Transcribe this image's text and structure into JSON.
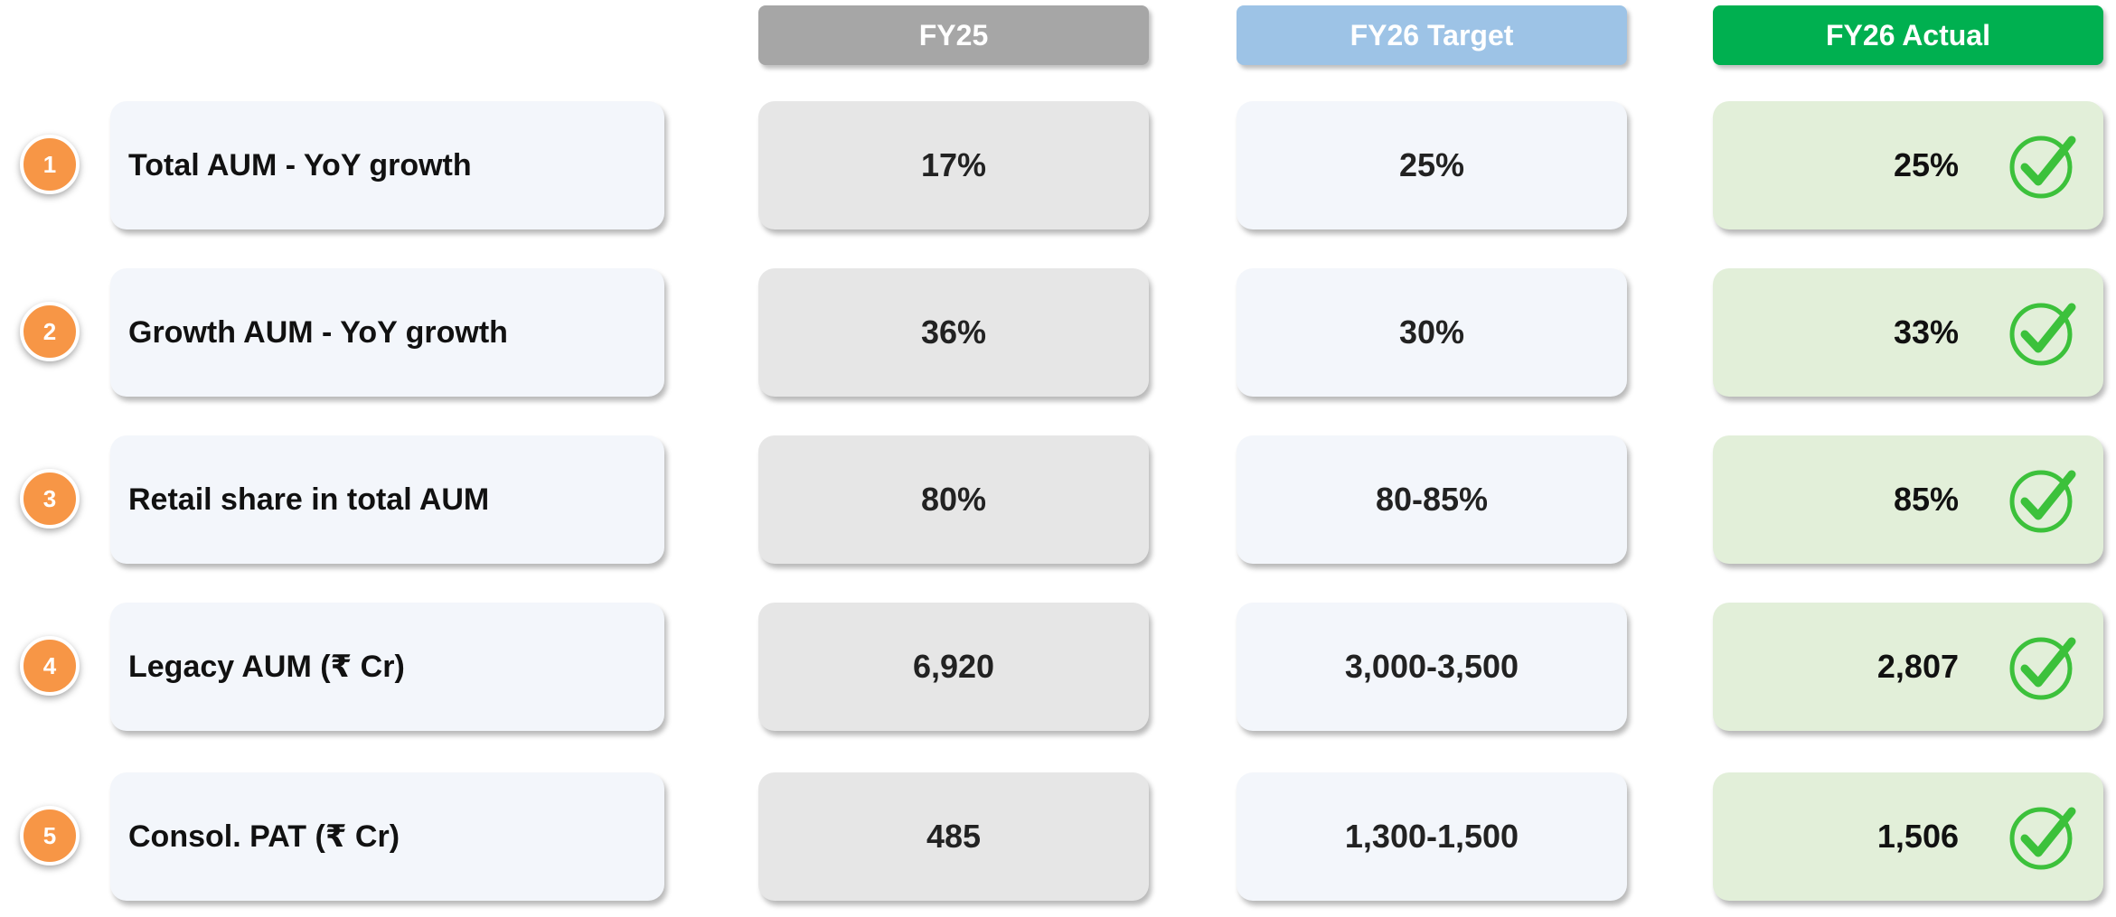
{
  "header": {
    "columns": [
      "FY25",
      "FY26 Target",
      "FY26 Actual"
    ]
  },
  "table": {
    "rows": [
      [
        "1",
        "Total AUM - YoY growth",
        "17%",
        "25%",
        "25%"
      ],
      [
        "2",
        "Growth AUM - YoY growth",
        "36%",
        "30%",
        "33%"
      ],
      [
        "3",
        "Retail share in total AUM",
        "80%",
        "80-85%",
        "85%"
      ],
      [
        "4",
        "Legacy AUM (₹ Cr)",
        "6,920",
        "3,000-3,500",
        "2,807"
      ],
      [
        "5",
        "Consol. PAT (₹ Cr)",
        "485",
        "1,300-1,500",
        "1,506"
      ]
    ]
  }
}
